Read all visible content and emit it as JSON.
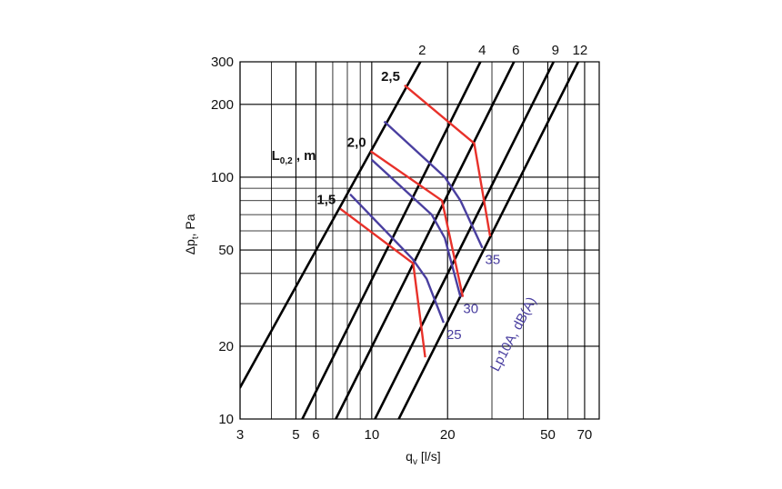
{
  "chart_data": {
    "type": "line",
    "xscale": "log",
    "yscale": "log",
    "xlim": [
      3,
      80
    ],
    "ylim": [
      10,
      300
    ],
    "grid": true,
    "xlabel_main": "q",
    "xlabel_sub": "v",
    "xlabel_unit": " [l/s]",
    "ylabel_main": "Δp",
    "ylabel_sub": "t",
    "ylabel_unit": ", Pa",
    "x_ticks": [
      {
        "value": 3,
        "label": "3"
      },
      {
        "value": 5,
        "label": "5"
      },
      {
        "value": 6,
        "label": "6"
      },
      {
        "value": 10,
        "label": "10"
      },
      {
        "value": 20,
        "label": "20"
      },
      {
        "value": 50,
        "label": "50"
      },
      {
        "value": 70,
        "label": "70"
      }
    ],
    "y_ticks": [
      {
        "value": 10,
        "label": "10"
      },
      {
        "value": 20,
        "label": "20"
      },
      {
        "value": 50,
        "label": "50"
      },
      {
        "value": 100,
        "label": "100"
      },
      {
        "value": 200,
        "label": "200"
      },
      {
        "value": 300,
        "label": "300"
      }
    ],
    "size_lines": [
      {
        "label": "2",
        "points": [
          [
            3,
            13.5
          ],
          [
            15.6,
            300
          ]
        ]
      },
      {
        "label": "4",
        "points": [
          [
            5.3,
            10
          ],
          [
            27,
            300
          ]
        ]
      },
      {
        "label": "6",
        "points": [
          [
            7.2,
            10
          ],
          [
            36.7,
            300
          ]
        ]
      },
      {
        "label": "9",
        "points": [
          [
            10.3,
            10
          ],
          [
            52.7,
            300
          ]
        ]
      },
      {
        "label": "12",
        "points": [
          [
            12.8,
            10
          ],
          [
            66,
            300
          ]
        ]
      }
    ],
    "length_label_prefix": "L",
    "length_label_sub": "0,2",
    "length_label_unit": " , m",
    "length_curves": [
      {
        "label": "2,5",
        "points": [
          [
            13.5,
            240
          ],
          [
            25.5,
            138
          ],
          [
            29.5,
            57
          ]
        ]
      },
      {
        "label": "2,0",
        "points": [
          [
            9.9,
            128
          ],
          [
            19,
            80
          ],
          [
            23,
            32
          ]
        ]
      },
      {
        "label": "1,5",
        "points": [
          [
            7.5,
            74
          ],
          [
            14.6,
            44
          ],
          [
            16.3,
            18
          ]
        ]
      }
    ],
    "noise_label": "Lp10A, dB(A)",
    "noise_curves": [
      {
        "label": "35",
        "points": [
          [
            11.2,
            170
          ],
          [
            19.5,
            100
          ],
          [
            22.5,
            80
          ],
          [
            27.5,
            51
          ]
        ]
      },
      {
        "label": "30",
        "points": [
          [
            10,
            118
          ],
          [
            17.3,
            70
          ],
          [
            19.5,
            56
          ],
          [
            22.5,
            32
          ]
        ]
      },
      {
        "label": "25",
        "points": [
          [
            8.2,
            85
          ],
          [
            14.5,
            46
          ],
          [
            16.5,
            38
          ],
          [
            19.3,
            25
          ]
        ]
      }
    ]
  }
}
